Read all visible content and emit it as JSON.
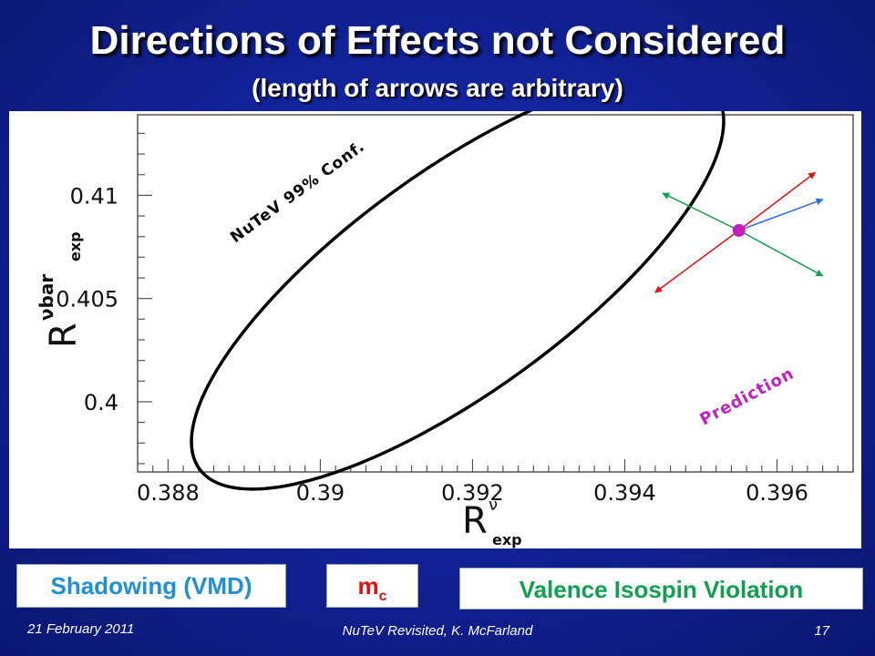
{
  "slide": {
    "title": "Directions of Effects not Considered",
    "subtitle": "(length of arrows are arbitrary)"
  },
  "chart_data": {
    "type": "scatter",
    "xlabel": "R",
    "xlabel_sup": "ν",
    "xlabel_sub": "exp",
    "ylabel": "R",
    "ylabel_sup": "νbar",
    "ylabel_sub": "exp",
    "x_ticks": [
      "0.388",
      "0.39",
      "0.392",
      "0.394",
      "0.396"
    ],
    "x_tick_values": [
      0.388,
      0.39,
      0.392,
      0.394,
      0.396
    ],
    "y_ticks": [
      "0.41",
      "0.405",
      "0.4"
    ],
    "y_tick_values": [
      0.41,
      0.405,
      0.4
    ],
    "xlim": [
      0.3876,
      0.397
    ],
    "ylim": [
      0.3966,
      0.4139
    ],
    "ellipse_label": "NuTeV 99% Conf.",
    "prediction_label": "Prediction",
    "prediction_point": {
      "x": 0.3955,
      "y": 0.4083
    },
    "arrows": [
      {
        "name": "Shadowing (VMD)",
        "color": "#2e6fd9",
        "dx": 0.0011,
        "dy": 0.0015,
        "both": false
      },
      {
        "name": "mc",
        "color": "#e01010",
        "dx": 0.001,
        "dy": 0.0028,
        "both": true,
        "ndx": -0.0011,
        "ndy": -0.003
      },
      {
        "name": "Valence Isospin Violation",
        "color": "#10a050",
        "dx": 0.0011,
        "dy": -0.0022,
        "both": true,
        "ndx": -0.001,
        "ndy": 0.0018
      }
    ],
    "colors": {
      "ellipse": "#000000",
      "prediction": "#c020c0"
    }
  },
  "legend_boxes": {
    "shadowing": "Shadowing (VMD)",
    "mc_main": "m",
    "mc_sub": "c",
    "valence": "Valence Isospin Violation"
  },
  "footer": {
    "date": "21 February 2011",
    "center": "NuTeV Revisited, K. McFarland",
    "page": "17"
  }
}
